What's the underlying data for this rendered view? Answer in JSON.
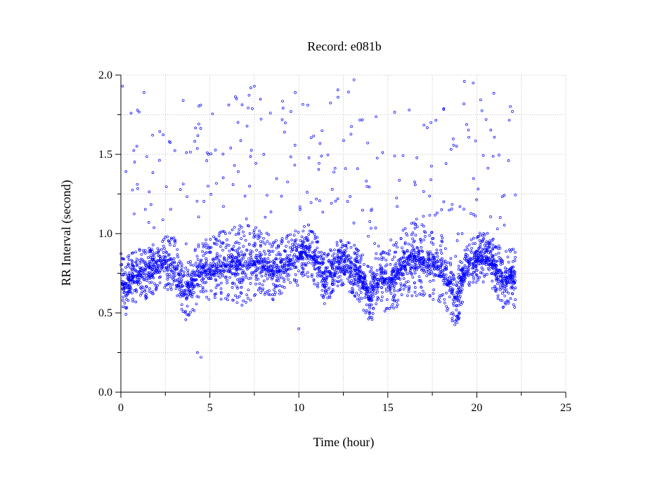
{
  "chart_data": {
    "type": "scatter",
    "title": "Record:  e081b",
    "xlabel": "Time (hour)",
    "ylabel": "RR Interval (second)",
    "xlim": [
      0,
      25
    ],
    "ylim": [
      0.0,
      2.0
    ],
    "x_ticks": [
      "0",
      "5",
      "10",
      "15",
      "20",
      "25"
    ],
    "y_ticks": [
      "0.0",
      "0.5",
      "1.0",
      "1.5",
      "2.0"
    ],
    "grid": true,
    "marker_color": "#0000ff",
    "series": [
      {
        "trend": [
          [
            0.0,
            0.7
          ],
          [
            0.3,
            0.66
          ],
          [
            0.6,
            0.72
          ],
          [
            1.0,
            0.74
          ],
          [
            1.5,
            0.75
          ],
          [
            2.0,
            0.8
          ],
          [
            2.5,
            0.82
          ],
          [
            3.0,
            0.8
          ],
          [
            3.3,
            0.72
          ],
          [
            3.6,
            0.6
          ],
          [
            4.0,
            0.68
          ],
          [
            4.5,
            0.77
          ],
          [
            5.0,
            0.78
          ],
          [
            5.5,
            0.79
          ],
          [
            6.0,
            0.8
          ],
          [
            6.5,
            0.8
          ],
          [
            7.0,
            0.8
          ],
          [
            7.5,
            0.82
          ],
          [
            8.0,
            0.8
          ],
          [
            8.5,
            0.78
          ],
          [
            9.0,
            0.79
          ],
          [
            9.5,
            0.82
          ],
          [
            10.0,
            0.85
          ],
          [
            10.5,
            0.9
          ],
          [
            11.0,
            0.83
          ],
          [
            11.5,
            0.7
          ],
          [
            12.0,
            0.8
          ],
          [
            12.5,
            0.82
          ],
          [
            13.0,
            0.78
          ],
          [
            13.5,
            0.72
          ],
          [
            14.0,
            0.6
          ],
          [
            14.5,
            0.75
          ],
          [
            15.0,
            0.68
          ],
          [
            15.5,
            0.75
          ],
          [
            16.0,
            0.83
          ],
          [
            16.5,
            0.84
          ],
          [
            17.0,
            0.82
          ],
          [
            17.5,
            0.8
          ],
          [
            18.0,
            0.78
          ],
          [
            18.5,
            0.68
          ],
          [
            18.8,
            0.55
          ],
          [
            19.2,
            0.72
          ],
          [
            19.6,
            0.82
          ],
          [
            20.0,
            0.84
          ],
          [
            20.5,
            0.86
          ],
          [
            21.0,
            0.8
          ],
          [
            21.5,
            0.7
          ],
          [
            22.0,
            0.74
          ],
          [
            22.2,
            0.7
          ]
        ],
        "spread": [
          [
            0.0,
            0.18
          ],
          [
            2.0,
            0.16
          ],
          [
            5.0,
            0.2
          ],
          [
            7.0,
            0.26
          ],
          [
            8.5,
            0.2
          ],
          [
            10.0,
            0.18
          ],
          [
            12.0,
            0.15
          ],
          [
            13.5,
            0.17
          ],
          [
            15.0,
            0.2
          ],
          [
            16.5,
            0.24
          ],
          [
            18.0,
            0.22
          ],
          [
            19.5,
            0.14
          ],
          [
            20.5,
            0.18
          ],
          [
            22.2,
            0.18
          ]
        ],
        "outliers": [
          [
            0.1,
            1.93
          ],
          [
            1.3,
            1.89
          ],
          [
            3.5,
            1.84
          ],
          [
            4.3,
            0.25
          ],
          [
            4.5,
            0.22
          ],
          [
            6.5,
            1.85
          ],
          [
            7.3,
            1.92
          ],
          [
            7.5,
            1.93
          ],
          [
            9.8,
            1.89
          ],
          [
            10.5,
            1.81
          ],
          [
            12.2,
            1.86
          ],
          [
            13.1,
            1.97
          ],
          [
            16.2,
            1.78
          ],
          [
            19.3,
            1.96
          ],
          [
            19.8,
            1.95
          ],
          [
            22.0,
            1.77
          ],
          [
            10.0,
            0.4
          ]
        ]
      }
    ]
  }
}
